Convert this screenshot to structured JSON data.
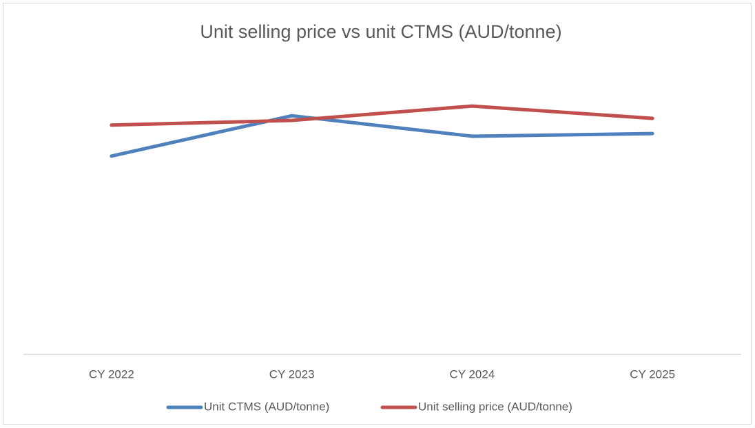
{
  "chart_data": {
    "type": "line",
    "title": "Unit selling price vs unit CTMS (AUD/tonne)",
    "categories": [
      "CY 2022",
      "CY 2023",
      "CY 2024",
      "CY 2025"
    ],
    "series": [
      {
        "name": "Unit CTMS (AUD/tonne)",
        "color": "#4f81bd",
        "values": [
          67.8,
          81.6,
          74.6,
          75.5
        ]
      },
      {
        "name": "Unit selling price (AUD/tonne)",
        "color": "#c0504d",
        "values": [
          78.4,
          80,
          84.9,
          80.7
        ]
      }
    ],
    "ylim": [
      0,
      100
    ],
    "legend": "bottom"
  }
}
